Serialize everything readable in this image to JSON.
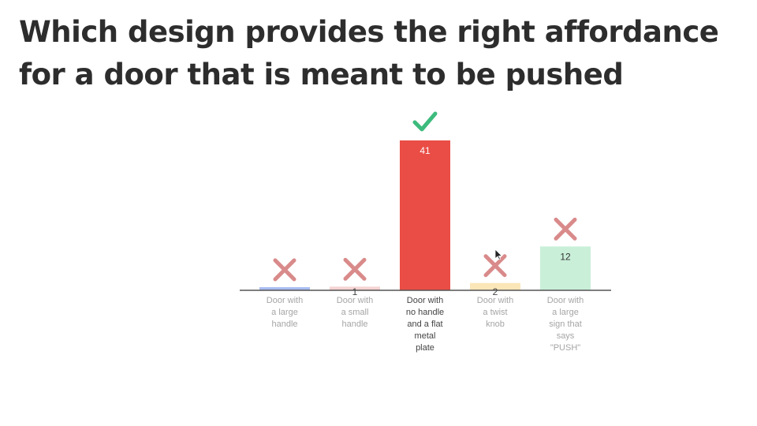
{
  "slide": {
    "title": "Which design provides the right affordance for a door that is meant to be pushed"
  },
  "icons": {
    "correct": "checkmark-icon",
    "incorrect": "cross-icon",
    "cursor": "mouse-pointer-icon"
  },
  "colors": {
    "correct_mark": "#3dbb7d",
    "incorrect_mark": "#d98a8a",
    "axis": "#555555",
    "label_faded": "#a5a5a5",
    "label_selected": "#444444"
  },
  "chart_data": {
    "type": "bar",
    "categories": [
      "Door with a large handle",
      "Door with a small handle",
      "Door with no handle and a flat metal plate",
      "Door with a twist knob",
      "Door with a large sign that says \"PUSH\""
    ],
    "category_lines": [
      [
        "Door with",
        "a large",
        "handle"
      ],
      [
        "Door with",
        "a small",
        "handle"
      ],
      [
        "Door with",
        "no handle",
        "and a flat",
        "metal",
        "plate"
      ],
      [
        "Door with",
        "a twist",
        "knob"
      ],
      [
        "Door with",
        "a large",
        "sign that",
        "says",
        "\"PUSH\""
      ]
    ],
    "values": [
      0,
      1,
      41,
      2,
      12
    ],
    "data_labels": [
      "",
      "1",
      "41",
      "2",
      "12"
    ],
    "bar_colors": [
      "#a9bdf0",
      "#f5d3d3",
      "#ea4d45",
      "#fbe6b8",
      "#c9efd8"
    ],
    "correct": [
      false,
      false,
      true,
      false,
      false
    ],
    "ylim": [
      0,
      41
    ],
    "xlabel": "",
    "ylabel": "",
    "grid": false,
    "legend": "none"
  }
}
